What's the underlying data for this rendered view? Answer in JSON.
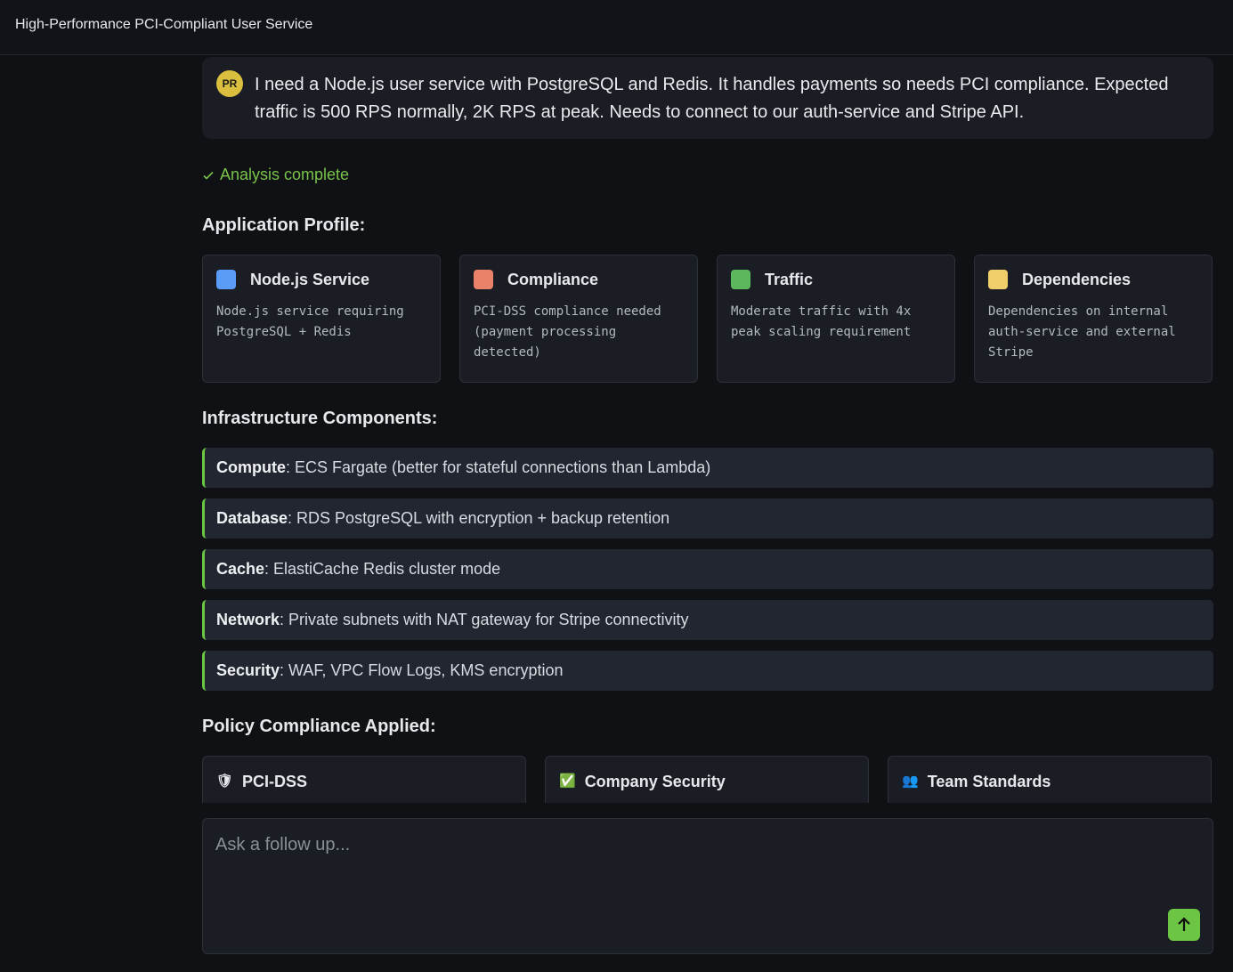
{
  "header": {
    "title": "High-Performance PCI-Compliant User Service"
  },
  "message": {
    "avatar": "PR",
    "text": "I need a Node.js user service with PostgreSQL and Redis. It handles payments so needs PCI compliance. Expected traffic is 500 RPS normally, 2K RPS at peak. Needs to connect to our auth-service and Stripe API."
  },
  "status": {
    "icon": "check-icon",
    "text": "Analysis complete",
    "color": "#79c34a"
  },
  "profile": {
    "heading": "Application Profile:",
    "cards": [
      {
        "title": "Node.js Service",
        "desc": "Node.js service requiring PostgreSQL + Redis",
        "color": "#5b9cf6"
      },
      {
        "title": "Compliance",
        "desc": "PCI-DSS compliance needed (payment processing detected)",
        "color": "#e8836a"
      },
      {
        "title": "Traffic",
        "desc": "Moderate traffic with 4x peak scaling requirement",
        "color": "#5cb85c"
      },
      {
        "title": "Dependencies",
        "desc": "Dependencies on internal auth-service and external Stripe",
        "color": "#f0cf6a"
      }
    ]
  },
  "infra": {
    "heading": "Infrastructure Components:",
    "items": [
      {
        "label": "Compute",
        "value": ": ECS Fargate (better for stateful connections than Lambda)"
      },
      {
        "label": "Database",
        "value": ": RDS PostgreSQL with encryption + backup retention"
      },
      {
        "label": "Cache",
        "value": ": ElastiCache Redis cluster mode"
      },
      {
        "label": "Network",
        "value": ": Private subnets with NAT gateway for Stripe connectivity"
      },
      {
        "label": "Security",
        "value": ": WAF, VPC Flow Logs, KMS encryption"
      }
    ]
  },
  "policy": {
    "heading": "Policy Compliance Applied:",
    "items": [
      {
        "icon": "shield-icon",
        "glyph": "🛡",
        "label": "PCI-DSS"
      },
      {
        "icon": "check-box-icon",
        "glyph": "✅",
        "label": "Company Security"
      },
      {
        "icon": "people-icon",
        "glyph": "👥",
        "label": "Team Standards"
      }
    ]
  },
  "input": {
    "placeholder": "Ask a follow up...",
    "value": ""
  }
}
